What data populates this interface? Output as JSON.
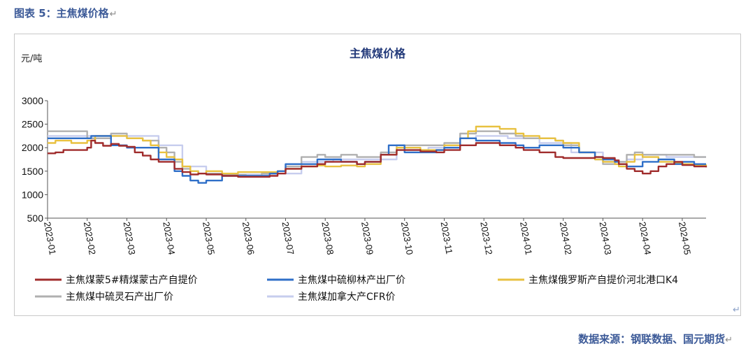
{
  "caption": "图表 5：主焦煤价格",
  "return_mark": "↵",
  "source": "数据来源：钢联数据、国元期货",
  "chart_data": {
    "type": "line",
    "title": "主焦煤价格",
    "ylabel": "元/吨",
    "xlabel": "",
    "ylim": [
      500,
      3000
    ],
    "yticks": [
      500,
      1000,
      1500,
      2000,
      2500,
      3000
    ],
    "xlim": [
      0,
      16.6
    ],
    "x_tick_labels": [
      "2023-01",
      "2023-02",
      "2023-03",
      "2023-04",
      "2023-05",
      "2023-06",
      "2023-07",
      "2023-08",
      "2023-09",
      "2023-10",
      "2023-11",
      "2023-12",
      "2024-01",
      "2024-02",
      "2024-03",
      "2024-04",
      "2024-05"
    ],
    "grid": false,
    "legend_position": "bottom",
    "series": [
      {
        "name": "主焦煤蒙5#精煤蒙古产自提价",
        "color": "#a02c2c",
        "x": [
          0,
          0.2,
          0.4,
          0.6,
          0.8,
          1.0,
          1.1,
          1.2,
          1.4,
          1.6,
          1.8,
          2.0,
          2.2,
          2.4,
          2.6,
          2.8,
          3.0,
          3.2,
          3.4,
          3.6,
          3.8,
          4.0,
          4.4,
          4.8,
          5.0,
          5.4,
          5.6,
          5.8,
          6.0,
          6.4,
          6.8,
          7.0,
          7.4,
          7.8,
          8.0,
          8.4,
          8.8,
          9.0,
          9.4,
          9.8,
          10.0,
          10.4,
          10.8,
          11.0,
          11.4,
          11.8,
          12.0,
          12.4,
          12.8,
          13.0,
          13.4,
          13.8,
          14.0,
          14.3,
          14.4,
          14.6,
          14.8,
          15.0,
          15.2,
          15.4,
          15.6,
          15.8,
          16.0,
          16.3,
          16.6
        ],
        "y": [
          1880,
          1900,
          1950,
          1950,
          1950,
          2000,
          2150,
          2100,
          2040,
          2080,
          2040,
          2020,
          1900,
          1830,
          1750,
          1700,
          1700,
          1550,
          1480,
          1430,
          1450,
          1430,
          1400,
          1380,
          1380,
          1380,
          1400,
          1450,
          1550,
          1600,
          1650,
          1700,
          1700,
          1650,
          1700,
          1850,
          1950,
          1950,
          1920,
          1900,
          1950,
          2050,
          2100,
          2100,
          2050,
          2000,
          1950,
          1900,
          1800,
          1780,
          1780,
          1800,
          1780,
          1730,
          1650,
          1550,
          1500,
          1450,
          1500,
          1600,
          1650,
          1700,
          1630,
          1600,
          1580
        ]
      },
      {
        "name": "主焦煤中硫柳林产出厂价",
        "color": "#2f6fc8",
        "x": [
          0,
          1.0,
          1.1,
          1.6,
          2.0,
          2.4,
          2.6,
          2.8,
          3.0,
          3.2,
          3.4,
          3.6,
          3.8,
          4.0,
          4.4,
          4.8,
          5.0,
          5.4,
          5.6,
          5.8,
          6.0,
          6.4,
          6.8,
          7.0,
          7.4,
          7.8,
          8.0,
          8.4,
          8.6,
          8.8,
          9.0,
          9.4,
          9.8,
          10.0,
          10.4,
          10.8,
          11.0,
          11.4,
          11.8,
          12.0,
          12.4,
          12.8,
          13.0,
          13.4,
          13.8,
          14.0,
          14.3,
          14.4,
          14.6,
          14.8,
          15.0,
          15.4,
          15.8,
          16.0,
          16.3,
          16.6
        ],
        "y": [
          2200,
          2200,
          2250,
          2050,
          2000,
          2000,
          2000,
          1750,
          1750,
          1500,
          1400,
          1300,
          1250,
          1300,
          1400,
          1400,
          1400,
          1400,
          1450,
          1500,
          1650,
          1650,
          1750,
          1750,
          1700,
          1650,
          1700,
          1850,
          2050,
          2050,
          1900,
          1900,
          1950,
          2000,
          2200,
          2150,
          2150,
          2100,
          2050,
          2000,
          2050,
          2050,
          2000,
          1900,
          1800,
          1750,
          1700,
          1650,
          1600,
          1600,
          1700,
          1750,
          1650,
          1700,
          1650,
          1650
        ]
      },
      {
        "name": "主焦煤俄罗斯产自提价河北港口K4",
        "color": "#e8c140",
        "x": [
          0,
          0.2,
          0.6,
          1.0,
          1.2,
          1.6,
          2.0,
          2.4,
          2.6,
          2.8,
          3.0,
          3.2,
          3.4,
          3.6,
          3.8,
          4.0,
          4.4,
          4.8,
          5.0,
          5.4,
          5.8,
          6.0,
          6.4,
          6.8,
          7.0,
          7.4,
          7.8,
          8.0,
          8.4,
          8.8,
          9.0,
          9.4,
          9.8,
          10.0,
          10.4,
          10.6,
          10.8,
          11.0,
          11.4,
          11.8,
          12.0,
          12.4,
          12.8,
          13.0,
          13.4,
          13.8,
          14.0,
          14.3,
          14.4,
          14.6,
          14.8,
          15.0,
          15.4,
          15.8,
          16.0,
          16.3,
          16.6
        ],
        "y": [
          2100,
          2150,
          2100,
          2150,
          2250,
          2250,
          2200,
          2150,
          2050,
          1900,
          1800,
          1750,
          1600,
          1500,
          1450,
          1500,
          1450,
          1480,
          1480,
          1480,
          1500,
          1550,
          1600,
          1620,
          1600,
          1620,
          1600,
          1650,
          1850,
          2000,
          2000,
          1950,
          1950,
          2050,
          2200,
          2350,
          2450,
          2450,
          2400,
          2300,
          2250,
          2200,
          2150,
          2100,
          1900,
          1750,
          1700,
          1650,
          1600,
          1700,
          1850,
          1800,
          1700,
          1680,
          1650,
          1630,
          1600
        ]
      },
      {
        "name": "主焦煤中硫灵石产出厂价",
        "color": "#b0b0b0",
        "x": [
          0,
          0.8,
          1.0,
          1.6,
          2.0,
          2.4,
          2.6,
          2.8,
          3.0,
          3.2,
          3.4,
          3.6,
          3.8,
          4.0,
          4.4,
          4.8,
          5.0,
          5.4,
          5.8,
          6.0,
          6.4,
          6.8,
          7.0,
          7.4,
          7.8,
          8.0,
          8.4,
          8.8,
          9.0,
          9.4,
          9.8,
          10.0,
          10.4,
          10.8,
          11.0,
          11.4,
          11.8,
          12.0,
          12.4,
          12.8,
          13.0,
          13.4,
          13.8,
          14.0,
          14.3,
          14.4,
          14.6,
          14.8,
          15.0,
          15.4,
          15.8,
          16.0,
          16.3,
          16.6
        ],
        "y": [
          2350,
          2350,
          2200,
          2300,
          2200,
          2150,
          2150,
          2000,
          1900,
          1700,
          1550,
          1500,
          1450,
          1450,
          1420,
          1420,
          1400,
          1450,
          1500,
          1600,
          1800,
          1850,
          1800,
          1850,
          1800,
          1800,
          1900,
          2050,
          2050,
          2050,
          2050,
          2100,
          2300,
          2350,
          2350,
          2300,
          2250,
          2200,
          2200,
          2150,
          2050,
          1900,
          1750,
          1650,
          1650,
          1700,
          1850,
          1900,
          1850,
          1850,
          1850,
          1850,
          1800,
          1800
        ]
      },
      {
        "name": "主焦煤加拿大产CFR价",
        "color": "#c7cdee",
        "x": [
          0,
          2.0,
          2.8,
          3.4,
          4.0,
          4.8,
          5.6,
          6.4,
          7.2,
          8.0,
          8.8,
          9.6,
          10.4,
          10.8,
          11.6,
          12.4,
          13.2,
          14.0,
          14.6,
          15.0,
          15.6,
          16.6
        ],
        "y": [
          2250,
          2250,
          2050,
          1600,
          1450,
          1430,
          1450,
          1700,
          1750,
          1750,
          1950,
          2000,
          2200,
          2250,
          2200,
          2100,
          1900,
          1700,
          1750,
          1850,
          1800,
          1800
        ]
      }
    ]
  }
}
